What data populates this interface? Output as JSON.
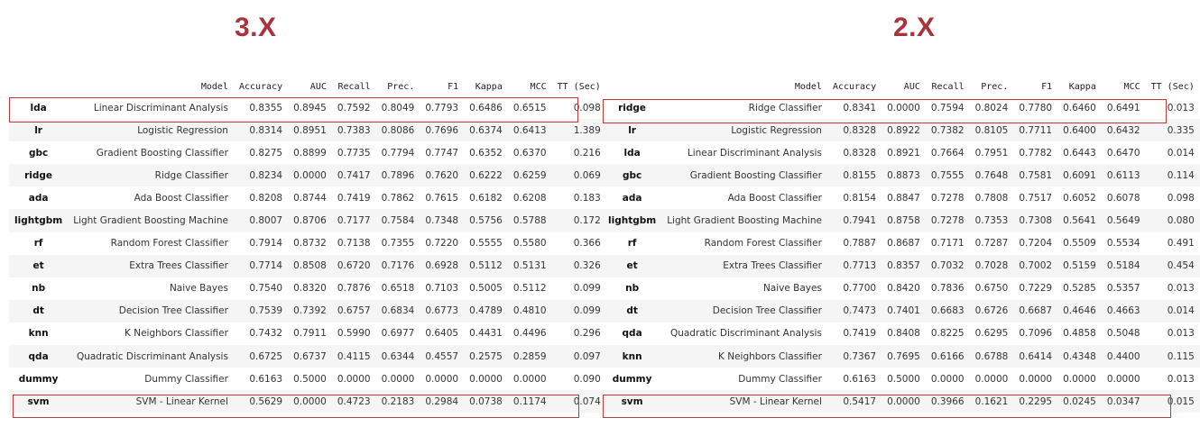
{
  "columns": [
    "",
    "Model",
    "Accuracy",
    "AUC",
    "Recall",
    "Prec.",
    "F1",
    "Kappa",
    "MCC",
    "TT (Sec)"
  ],
  "left": {
    "title": "3.X",
    "rows": [
      [
        "lda",
        "Linear Discriminant Analysis",
        "0.8355",
        "0.8945",
        "0.7592",
        "0.8049",
        "0.7793",
        "0.6486",
        "0.6515",
        "0.098"
      ],
      [
        "lr",
        "Logistic Regression",
        "0.8314",
        "0.8951",
        "0.7383",
        "0.8086",
        "0.7696",
        "0.6374",
        "0.6413",
        "1.389"
      ],
      [
        "gbc",
        "Gradient Boosting Classifier",
        "0.8275",
        "0.8899",
        "0.7735",
        "0.7794",
        "0.7747",
        "0.6352",
        "0.6370",
        "0.216"
      ],
      [
        "ridge",
        "Ridge Classifier",
        "0.8234",
        "0.0000",
        "0.7417",
        "0.7896",
        "0.7620",
        "0.6222",
        "0.6259",
        "0.069"
      ],
      [
        "ada",
        "Ada Boost Classifier",
        "0.8208",
        "0.8744",
        "0.7419",
        "0.7862",
        "0.7615",
        "0.6182",
        "0.6208",
        "0.183"
      ],
      [
        "lightgbm",
        "Light Gradient Boosting Machine",
        "0.8007",
        "0.8706",
        "0.7177",
        "0.7584",
        "0.7348",
        "0.5756",
        "0.5788",
        "0.172"
      ],
      [
        "rf",
        "Random Forest Classifier",
        "0.7914",
        "0.8732",
        "0.7138",
        "0.7355",
        "0.7220",
        "0.5555",
        "0.5580",
        "0.366"
      ],
      [
        "et",
        "Extra Trees Classifier",
        "0.7714",
        "0.8508",
        "0.6720",
        "0.7176",
        "0.6928",
        "0.5112",
        "0.5131",
        "0.326"
      ],
      [
        "nb",
        "Naive Bayes",
        "0.7540",
        "0.8320",
        "0.7876",
        "0.6518",
        "0.7103",
        "0.5005",
        "0.5112",
        "0.099"
      ],
      [
        "dt",
        "Decision Tree Classifier",
        "0.7539",
        "0.7392",
        "0.6757",
        "0.6834",
        "0.6773",
        "0.4789",
        "0.4810",
        "0.099"
      ],
      [
        "knn",
        "K Neighbors Classifier",
        "0.7432",
        "0.7911",
        "0.5990",
        "0.6977",
        "0.6405",
        "0.4431",
        "0.4496",
        "0.296"
      ],
      [
        "qda",
        "Quadratic Discriminant Analysis",
        "0.6725",
        "0.6737",
        "0.4115",
        "0.6344",
        "0.4557",
        "0.2575",
        "0.2859",
        "0.097"
      ],
      [
        "dummy",
        "Dummy Classifier",
        "0.6163",
        "0.5000",
        "0.0000",
        "0.0000",
        "0.0000",
        "0.0000",
        "0.0000",
        "0.090"
      ],
      [
        "svm",
        "SVM - Linear Kernel",
        "0.5629",
        "0.0000",
        "0.4723",
        "0.2183",
        "0.2984",
        "0.0738",
        "0.1174",
        "0.074"
      ]
    ]
  },
  "right": {
    "title": "2.X",
    "rows": [
      [
        "ridge",
        "Ridge Classifier",
        "0.8341",
        "0.0000",
        "0.7594",
        "0.8024",
        "0.7780",
        "0.6460",
        "0.6491",
        "0.013"
      ],
      [
        "lr",
        "Logistic Regression",
        "0.8328",
        "0.8922",
        "0.7382",
        "0.8105",
        "0.7711",
        "0.6400",
        "0.6432",
        "0.335"
      ],
      [
        "lda",
        "Linear Discriminant Analysis",
        "0.8328",
        "0.8921",
        "0.7664",
        "0.7951",
        "0.7782",
        "0.6443",
        "0.6470",
        "0.014"
      ],
      [
        "gbc",
        "Gradient Boosting Classifier",
        "0.8155",
        "0.8873",
        "0.7555",
        "0.7648",
        "0.7581",
        "0.6091",
        "0.6113",
        "0.114"
      ],
      [
        "ada",
        "Ada Boost Classifier",
        "0.8154",
        "0.8847",
        "0.7278",
        "0.7808",
        "0.7517",
        "0.6052",
        "0.6078",
        "0.098"
      ],
      [
        "lightgbm",
        "Light Gradient Boosting Machine",
        "0.7941",
        "0.8758",
        "0.7278",
        "0.7353",
        "0.7308",
        "0.5641",
        "0.5649",
        "0.080"
      ],
      [
        "rf",
        "Random Forest Classifier",
        "0.7887",
        "0.8687",
        "0.7171",
        "0.7287",
        "0.7204",
        "0.5509",
        "0.5534",
        "0.491"
      ],
      [
        "et",
        "Extra Trees Classifier",
        "0.7713",
        "0.8357",
        "0.7032",
        "0.7028",
        "0.7002",
        "0.5159",
        "0.5184",
        "0.454"
      ],
      [
        "nb",
        "Naive Bayes",
        "0.7700",
        "0.8420",
        "0.7836",
        "0.6750",
        "0.7229",
        "0.5285",
        "0.5357",
        "0.013"
      ],
      [
        "dt",
        "Decision Tree Classifier",
        "0.7473",
        "0.7401",
        "0.6683",
        "0.6726",
        "0.6687",
        "0.4646",
        "0.4663",
        "0.014"
      ],
      [
        "qda",
        "Quadratic Discriminant Analysis",
        "0.7419",
        "0.8408",
        "0.8225",
        "0.6295",
        "0.7096",
        "0.4858",
        "0.5048",
        "0.013"
      ],
      [
        "knn",
        "K Neighbors Classifier",
        "0.7367",
        "0.7695",
        "0.6166",
        "0.6788",
        "0.6414",
        "0.4348",
        "0.4400",
        "0.115"
      ],
      [
        "dummy",
        "Dummy Classifier",
        "0.6163",
        "0.5000",
        "0.0000",
        "0.0000",
        "0.0000",
        "0.0000",
        "0.0000",
        "0.013"
      ],
      [
        "svm",
        "SVM - Linear Kernel",
        "0.5417",
        "0.0000",
        "0.3966",
        "0.1621",
        "0.2295",
        "0.0245",
        "0.0347",
        "0.015"
      ]
    ]
  },
  "colors": {
    "title": "#a8343b",
    "highlight_border": "#c0393d",
    "stripe": "#f5f5f5"
  }
}
